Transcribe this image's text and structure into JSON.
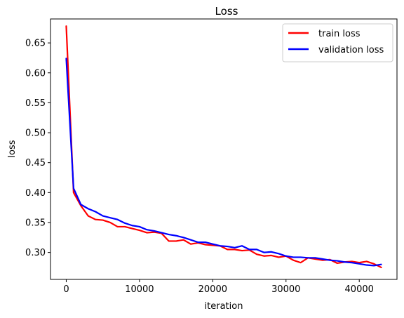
{
  "chart_data": {
    "type": "line",
    "title": "Loss",
    "xlabel": "iteration",
    "ylabel": "loss",
    "xlim": [
      -2150,
      45150
    ],
    "ylim": [
      0.255,
      0.69
    ],
    "xticks": [
      0,
      10000,
      20000,
      30000,
      40000
    ],
    "xtick_labels": [
      "0",
      "10000",
      "20000",
      "30000",
      "40000"
    ],
    "yticks": [
      0.3,
      0.35,
      0.4,
      0.45,
      0.5,
      0.55,
      0.6,
      0.65
    ],
    "ytick_labels": [
      "0.30",
      "0.35",
      "0.40",
      "0.45",
      "0.50",
      "0.55",
      "0.60",
      "0.65"
    ],
    "grid": false,
    "legend_position": "top-right",
    "series": [
      {
        "name": "train loss",
        "color": "#ff0000",
        "x": [
          0,
          1000,
          2000,
          3000,
          4000,
          5000,
          6000,
          7000,
          8000,
          9000,
          10000,
          11000,
          12000,
          13000,
          14000,
          15000,
          16000,
          17000,
          18000,
          19000,
          20000,
          21000,
          22000,
          23000,
          24000,
          25000,
          26000,
          27000,
          28000,
          29000,
          30000,
          31000,
          32000,
          33000,
          34000,
          35000,
          36000,
          37000,
          38000,
          39000,
          40000,
          41000,
          42000,
          43000
        ],
        "y": [
          0.678,
          0.4,
          0.378,
          0.361,
          0.355,
          0.354,
          0.35,
          0.343,
          0.343,
          0.34,
          0.337,
          0.333,
          0.334,
          0.332,
          0.319,
          0.319,
          0.321,
          0.314,
          0.316,
          0.313,
          0.312,
          0.311,
          0.305,
          0.305,
          0.303,
          0.304,
          0.297,
          0.294,
          0.295,
          0.292,
          0.294,
          0.287,
          0.283,
          0.291,
          0.289,
          0.287,
          0.288,
          0.282,
          0.284,
          0.285,
          0.283,
          0.285,
          0.281,
          0.275
        ]
      },
      {
        "name": "validation loss",
        "color": "#0000ff",
        "x": [
          0,
          1000,
          2000,
          3000,
          4000,
          5000,
          6000,
          7000,
          8000,
          9000,
          10000,
          11000,
          12000,
          13000,
          14000,
          15000,
          16000,
          17000,
          18000,
          19000,
          20000,
          21000,
          22000,
          23000,
          24000,
          25000,
          26000,
          27000,
          28000,
          29000,
          30000,
          31000,
          32000,
          33000,
          34000,
          35000,
          36000,
          37000,
          38000,
          39000,
          40000,
          41000,
          42000,
          43000
        ],
        "y": [
          0.624,
          0.407,
          0.38,
          0.373,
          0.368,
          0.361,
          0.358,
          0.355,
          0.349,
          0.345,
          0.343,
          0.338,
          0.336,
          0.333,
          0.33,
          0.328,
          0.325,
          0.321,
          0.317,
          0.317,
          0.314,
          0.311,
          0.31,
          0.308,
          0.311,
          0.305,
          0.305,
          0.3,
          0.301,
          0.298,
          0.294,
          0.292,
          0.292,
          0.291,
          0.291,
          0.289,
          0.287,
          0.286,
          0.284,
          0.283,
          0.281,
          0.279,
          0.278,
          0.28
        ]
      }
    ]
  }
}
